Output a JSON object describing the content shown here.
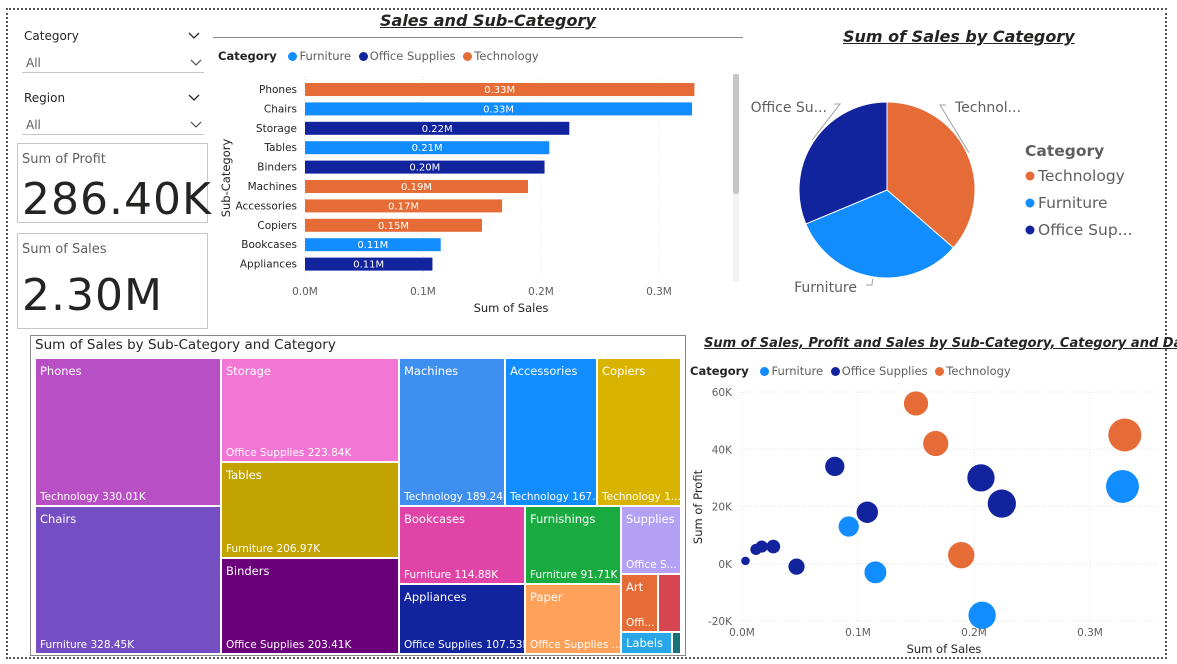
{
  "slicers": [
    {
      "title": "Category",
      "value": "All"
    },
    {
      "title": "Region",
      "value": "All"
    }
  ],
  "cards": [
    {
      "label": "Sum of Profit",
      "value": "286.40K"
    },
    {
      "label": "Sum of Sales",
      "value": "2.30M"
    }
  ],
  "colors": {
    "furniture": "#118DFF",
    "office_supplies": "#12239E",
    "technology": "#E66C37"
  },
  "chart_data": [
    {
      "type": "bar",
      "title": "Sales and Sub-Category",
      "legend_title": "Category",
      "legend": [
        "Furniture",
        "Office Supplies",
        "Technology"
      ],
      "categories": [
        "Phones",
        "Chairs",
        "Storage",
        "Tables",
        "Binders",
        "Machines",
        "Accessories",
        "Copiers",
        "Bookcases",
        "Appliances"
      ],
      "values": [
        0.33,
        0.33,
        0.22,
        0.21,
        0.2,
        0.19,
        0.17,
        0.15,
        0.11,
        0.11
      ],
      "actual_values": [
        0.33,
        0.328,
        0.224,
        0.207,
        0.203,
        0.189,
        0.167,
        0.15,
        0.115,
        0.108
      ],
      "data_labels": [
        "0.33M",
        "0.33M",
        "0.22M",
        "0.21M",
        "0.20M",
        "0.19M",
        "0.17M",
        "0.15M",
        "0.11M",
        "0.11M"
      ],
      "bar_category": [
        "Technology",
        "Furniture",
        "Office Supplies",
        "Furniture",
        "Office Supplies",
        "Technology",
        "Technology",
        "Technology",
        "Furniture",
        "Office Supplies"
      ],
      "xlabel": "Sum of Sales",
      "ylabel": "Sub-Category",
      "xticks": [
        "0.0M",
        "0.1M",
        "0.2M",
        "0.3M"
      ],
      "xlim": [
        0,
        0.35
      ]
    },
    {
      "type": "pie",
      "title": "Sum of Sales by Category",
      "legend_title": "Category",
      "legend": [
        "Technology",
        "Furniture",
        "Office Sup..."
      ],
      "labels": [
        "Technol...",
        "Furniture",
        "Office Su..."
      ],
      "categories": [
        "Technology",
        "Furniture",
        "Office Supplies"
      ],
      "values": [
        0.836,
        0.742,
        0.719
      ]
    },
    {
      "type": "treemap",
      "title": "Sum of Sales by Sub-Category and Category",
      "tiles": [
        {
          "name": "Phones",
          "label": "Technology 330.01K",
          "value": 330.01,
          "color": "#B94FC4"
        },
        {
          "name": "Chairs",
          "label": "Furniture 328.45K",
          "value": 328.45,
          "color": "#744EC2"
        },
        {
          "name": "Storage",
          "label": "Office Supplies 223.84K",
          "value": 223.84,
          "color": "#F277D5"
        },
        {
          "name": "Tables",
          "label": "Furniture 206.97K",
          "value": 206.97,
          "color": "#C2A300"
        },
        {
          "name": "Binders",
          "label": "Office Supplies 203.41K",
          "value": 203.41,
          "color": "#6B007B"
        },
        {
          "name": "Machines",
          "label": "Technology 189.24K",
          "value": 189.24,
          "color": "#3F8FF0"
        },
        {
          "name": "Accessories",
          "label": "Technology 167...",
          "value": 167,
          "color": "#118DFF"
        },
        {
          "name": "Copiers",
          "label": "Technology 1...",
          "value": 150,
          "color": "#D8B400"
        },
        {
          "name": "Bookcases",
          "label": "Furniture 114.88K",
          "value": 114.88,
          "color": "#E044A7"
        },
        {
          "name": "Appliances",
          "label": "Office Supplies 107.53K",
          "value": 107.53,
          "color": "#12239E"
        },
        {
          "name": "Furnishings",
          "label": "Furniture 91.71K",
          "value": 91.71,
          "color": "#1AAB40"
        },
        {
          "name": "Paper",
          "label": "Office Supplies ...",
          "value": 78,
          "color": "#FEA15A"
        },
        {
          "name": "Supplies",
          "label": "Office S...",
          "value": 47,
          "color": "#B4A0F5"
        },
        {
          "name": "Art",
          "label": "Offi...",
          "value": 27,
          "color": "#E66C37"
        },
        {
          "name": "",
          "label": "",
          "value": 16,
          "color": "#D64550"
        },
        {
          "name": "Labels",
          "label": "",
          "value": 12,
          "color": "#28A6E8"
        },
        {
          "name": "",
          "label": "",
          "value": 3,
          "color": "#197278"
        }
      ]
    },
    {
      "type": "scatter",
      "title": "Sum of Sales, Profit and Sales by Sub-Category, Category and Day",
      "legend_title": "Category",
      "legend": [
        "Furniture",
        "Office Supplies",
        "Technology"
      ],
      "xlabel": "Sum of Sales",
      "ylabel": "Sum of Profit",
      "xticks": [
        "0.0M",
        "0.1M",
        "0.2M",
        "0.3M"
      ],
      "yticks": [
        "60K",
        "40K",
        "20K",
        "0K",
        "-20K"
      ],
      "xlim": [
        0,
        0.35
      ],
      "ylim": [
        -20,
        60
      ],
      "points": [
        {
          "category": "Technology",
          "x": 0.15,
          "y": 56,
          "size": 0.15
        },
        {
          "category": "Technology",
          "x": 0.167,
          "y": 42,
          "size": 0.167
        },
        {
          "category": "Technology",
          "x": 0.33,
          "y": 45,
          "size": 0.33
        },
        {
          "category": "Technology",
          "x": 0.189,
          "y": 3,
          "size": 0.189
        },
        {
          "category": "Furniture",
          "x": 0.328,
          "y": 27,
          "size": 0.328
        },
        {
          "category": "Furniture",
          "x": 0.092,
          "y": 13,
          "size": 0.092
        },
        {
          "category": "Furniture",
          "x": 0.115,
          "y": -3,
          "size": 0.115
        },
        {
          "category": "Furniture",
          "x": 0.207,
          "y": -18,
          "size": 0.207
        },
        {
          "category": "Office Supplies",
          "x": 0.08,
          "y": 34,
          "size": 0.08
        },
        {
          "category": "Office Supplies",
          "x": 0.206,
          "y": 30,
          "size": 0.206
        },
        {
          "category": "Office Supplies",
          "x": 0.224,
          "y": 21,
          "size": 0.224
        },
        {
          "category": "Office Supplies",
          "x": 0.108,
          "y": 18,
          "size": 0.108
        },
        {
          "category": "Office Supplies",
          "x": 0.047,
          "y": -1,
          "size": 0.047
        },
        {
          "category": "Office Supplies",
          "x": 0.027,
          "y": 6,
          "size": 0.027
        },
        {
          "category": "Office Supplies",
          "x": 0.017,
          "y": 6,
          "size": 0.017
        },
        {
          "category": "Office Supplies",
          "x": 0.012,
          "y": 5,
          "size": 0.012
        },
        {
          "category": "Office Supplies",
          "x": 0.003,
          "y": 1,
          "size": 0.003
        }
      ]
    }
  ]
}
